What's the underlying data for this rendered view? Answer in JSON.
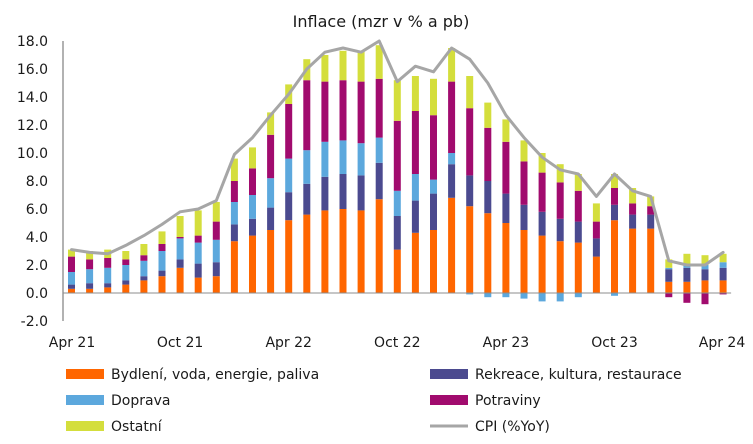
{
  "chart_data": {
    "type": "bar",
    "stacked": true,
    "title": "Inflace (mzr v % a pb)",
    "xlabel": "",
    "ylabel": "",
    "ylim": [
      -2,
      18
    ],
    "yticks": [
      18.0,
      16.0,
      14.0,
      12.0,
      10.0,
      8.0,
      6.0,
      4.0,
      2.0,
      0.0,
      -2.0
    ],
    "ytick_labels": [
      "18.0",
      "16.0",
      "14.0",
      "12.0",
      "10.0",
      "8.0",
      "6.0",
      "4.0",
      "2.0",
      "0.0",
      "-2.0"
    ],
    "x_tick_labels": [
      {
        "label": "Apr 21",
        "index": 0
      },
      {
        "label": "Oct 21",
        "index": 6
      },
      {
        "label": "Apr 22",
        "index": 12
      },
      {
        "label": "Oct 22",
        "index": 18
      },
      {
        "label": "Apr 23",
        "index": 24
      },
      {
        "label": "Oct 23",
        "index": 30
      },
      {
        "label": "Apr 24",
        "index": 36
      }
    ],
    "categories": [
      "Apr 21",
      "May 21",
      "Jun 21",
      "Jul 21",
      "Aug 21",
      "Sep 21",
      "Oct 21",
      "Nov 21",
      "Dec 21",
      "Jan 22",
      "Feb 22",
      "Mar 22",
      "Apr 22",
      "May 22",
      "Jun 22",
      "Jul 22",
      "Aug 22",
      "Sep 22",
      "Oct 22",
      "Nov 22",
      "Dec 22",
      "Jan 23",
      "Feb 23",
      "Mar 23",
      "Apr 23",
      "May 23",
      "Jun 23",
      "Jul 23",
      "Aug 23",
      "Sep 23",
      "Oct 23",
      "Nov 23",
      "Dec 23",
      "Jan 24",
      "Feb 24",
      "Mar 24",
      "Apr 24"
    ],
    "grid": false,
    "legend_position": "bottom",
    "series": [
      {
        "name": "Bydlení, voda, energie, paliva",
        "color": "#ff6600",
        "values": [
          0.3,
          0.3,
          0.4,
          0.6,
          0.9,
          1.2,
          1.8,
          1.1,
          1.2,
          3.7,
          4.1,
          4.5,
          5.2,
          5.6,
          5.9,
          6.0,
          5.9,
          6.7,
          3.1,
          4.3,
          4.5,
          6.8,
          6.2,
          5.7,
          5.0,
          4.5,
          4.1,
          3.7,
          3.6,
          2.6,
          5.2,
          4.6,
          4.6,
          0.8,
          0.8,
          0.9,
          0.9
        ]
      },
      {
        "name": "Rekreace, kultura, restaurace",
        "color": "#4b4a8f",
        "values": [
          0.3,
          0.4,
          0.3,
          0.3,
          0.3,
          0.4,
          0.6,
          1.0,
          1.0,
          1.2,
          1.2,
          1.6,
          2.0,
          2.2,
          2.4,
          2.5,
          2.5,
          2.6,
          2.4,
          2.3,
          2.6,
          2.4,
          2.2,
          2.3,
          2.1,
          1.8,
          1.7,
          1.6,
          1.5,
          1.3,
          1.1,
          1.0,
          1.0,
          0.9,
          1.0,
          0.8,
          0.9
        ]
      },
      {
        "name": "Doprava",
        "color": "#5ca8dd",
        "values": [
          0.9,
          1.0,
          1.1,
          1.1,
          1.1,
          1.4,
          1.5,
          1.5,
          1.6,
          1.6,
          1.7,
          2.1,
          2.4,
          2.4,
          2.5,
          2.4,
          2.3,
          1.8,
          1.8,
          1.9,
          1.0,
          0.8,
          -0.1,
          -0.3,
          -0.3,
          -0.4,
          -0.6,
          -0.6,
          -0.3,
          0.0,
          -0.2,
          0.0,
          0.0,
          0.1,
          0.2,
          0.3,
          0.4
        ]
      },
      {
        "name": "Potraviny",
        "color": "#a10b6e",
        "values": [
          1.1,
          0.7,
          0.7,
          0.4,
          0.4,
          0.5,
          0.1,
          0.5,
          1.3,
          1.5,
          1.9,
          3.1,
          3.9,
          5.0,
          4.3,
          4.3,
          4.4,
          4.2,
          5.0,
          4.5,
          4.6,
          5.1,
          4.8,
          3.8,
          3.7,
          3.1,
          2.8,
          2.6,
          2.2,
          1.2,
          1.2,
          0.8,
          0.6,
          -0.3,
          -0.7,
          -0.8,
          -0.1
        ]
      },
      {
        "name": "Ostatní",
        "color": "#d4de3c",
        "values": [
          0.5,
          0.6,
          0.6,
          0.6,
          0.8,
          0.9,
          1.5,
          1.8,
          1.4,
          1.6,
          1.5,
          1.6,
          1.4,
          1.5,
          1.9,
          2.1,
          2.2,
          2.4,
          2.9,
          2.5,
          2.6,
          2.4,
          2.3,
          1.8,
          1.6,
          1.5,
          1.4,
          1.3,
          1.2,
          1.3,
          1.0,
          1.1,
          0.7,
          0.6,
          0.8,
          0.7,
          0.6
        ]
      }
    ],
    "line_series": {
      "name": "CPI (%YoY)",
      "color": "#a6a6a6",
      "values": [
        3.1,
        2.9,
        2.8,
        3.4,
        4.1,
        4.9,
        5.8,
        6.0,
        6.6,
        9.9,
        11.1,
        12.7,
        14.2,
        16.0,
        17.2,
        17.5,
        17.2,
        18.0,
        15.1,
        16.2,
        15.8,
        17.5,
        16.7,
        15.0,
        12.7,
        11.1,
        9.7,
        8.8,
        8.5,
        6.9,
        8.5,
        7.3,
        6.9,
        2.3,
        2.0,
        2.0,
        2.9
      ]
    }
  }
}
